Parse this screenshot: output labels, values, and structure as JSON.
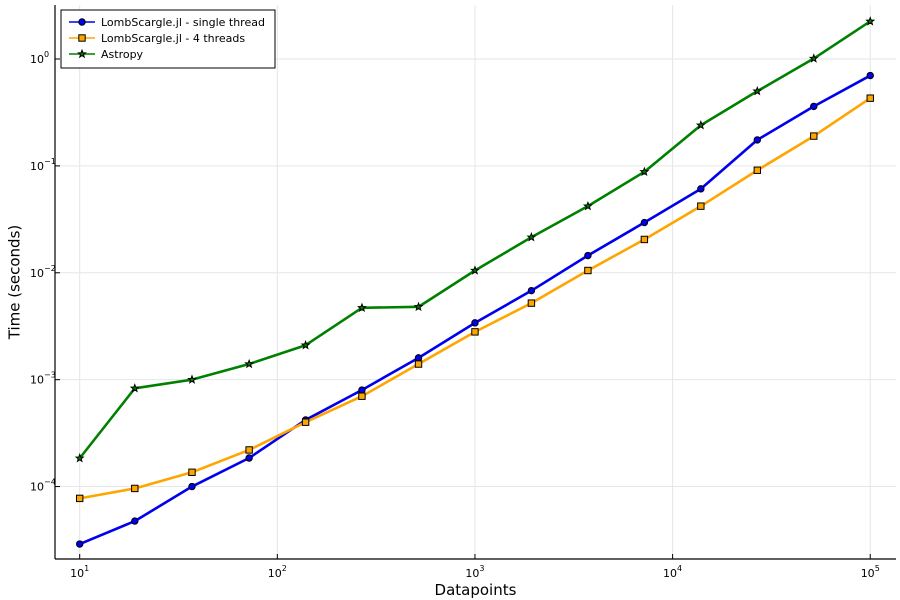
{
  "chart_data": {
    "type": "line",
    "xlabel": "Datapoints",
    "ylabel": "Time (seconds)",
    "x_scale": "log",
    "y_scale": "log",
    "xlim": [
      7.5,
      135000
    ],
    "ylim": [
      2.1e-05,
      3.2
    ],
    "x_ticks": [
      {
        "value": 10,
        "base": "10",
        "exp": "1"
      },
      {
        "value": 100,
        "base": "10",
        "exp": "2"
      },
      {
        "value": 1000,
        "base": "10",
        "exp": "3"
      },
      {
        "value": 10000,
        "base": "10",
        "exp": "4"
      },
      {
        "value": 100000,
        "base": "10",
        "exp": "5"
      }
    ],
    "y_ticks": [
      {
        "value": 0.0001,
        "base": "10",
        "exp": "−4"
      },
      {
        "value": 0.001,
        "base": "10",
        "exp": "−3"
      },
      {
        "value": 0.01,
        "base": "10",
        "exp": "−2"
      },
      {
        "value": 0.1,
        "base": "10",
        "exp": "−1"
      },
      {
        "value": 1,
        "base": "10",
        "exp": "0"
      }
    ],
    "grid": true,
    "legend_position": "top-left",
    "x": [
      10,
      19,
      37,
      72,
      139,
      268,
      518,
      1000,
      1930,
      3728,
      7197,
      13895,
      26827,
      51795,
      100000
    ],
    "series": [
      {
        "name": "LombScargle.jl - single thread",
        "color": "#0000ee",
        "marker": "circle",
        "values": [
          2.9e-05,
          4.75e-05,
          0.0001,
          0.000185,
          0.00042,
          0.0008,
          0.0016,
          0.0034,
          0.0068,
          0.0145,
          0.0295,
          0.061,
          0.175,
          0.36,
          0.7
        ]
      },
      {
        "name": "LombScargle.jl - 4 threads",
        "color": "#ffa500",
        "marker": "square",
        "values": [
          7.75e-05,
          9.6e-05,
          0.000136,
          0.00022,
          0.0004,
          0.0007,
          0.0014,
          0.0028,
          0.0052,
          0.0105,
          0.0205,
          0.042,
          0.091,
          0.19,
          0.43
        ]
      },
      {
        "name": "Astropy",
        "color": "#008000",
        "marker": "star",
        "values": [
          0.000184,
          0.00083,
          0.001,
          0.0014,
          0.0021,
          0.0047,
          0.0048,
          0.0105,
          0.0215,
          0.042,
          0.088,
          0.24,
          0.5,
          1.01,
          2.25
        ]
      }
    ]
  }
}
